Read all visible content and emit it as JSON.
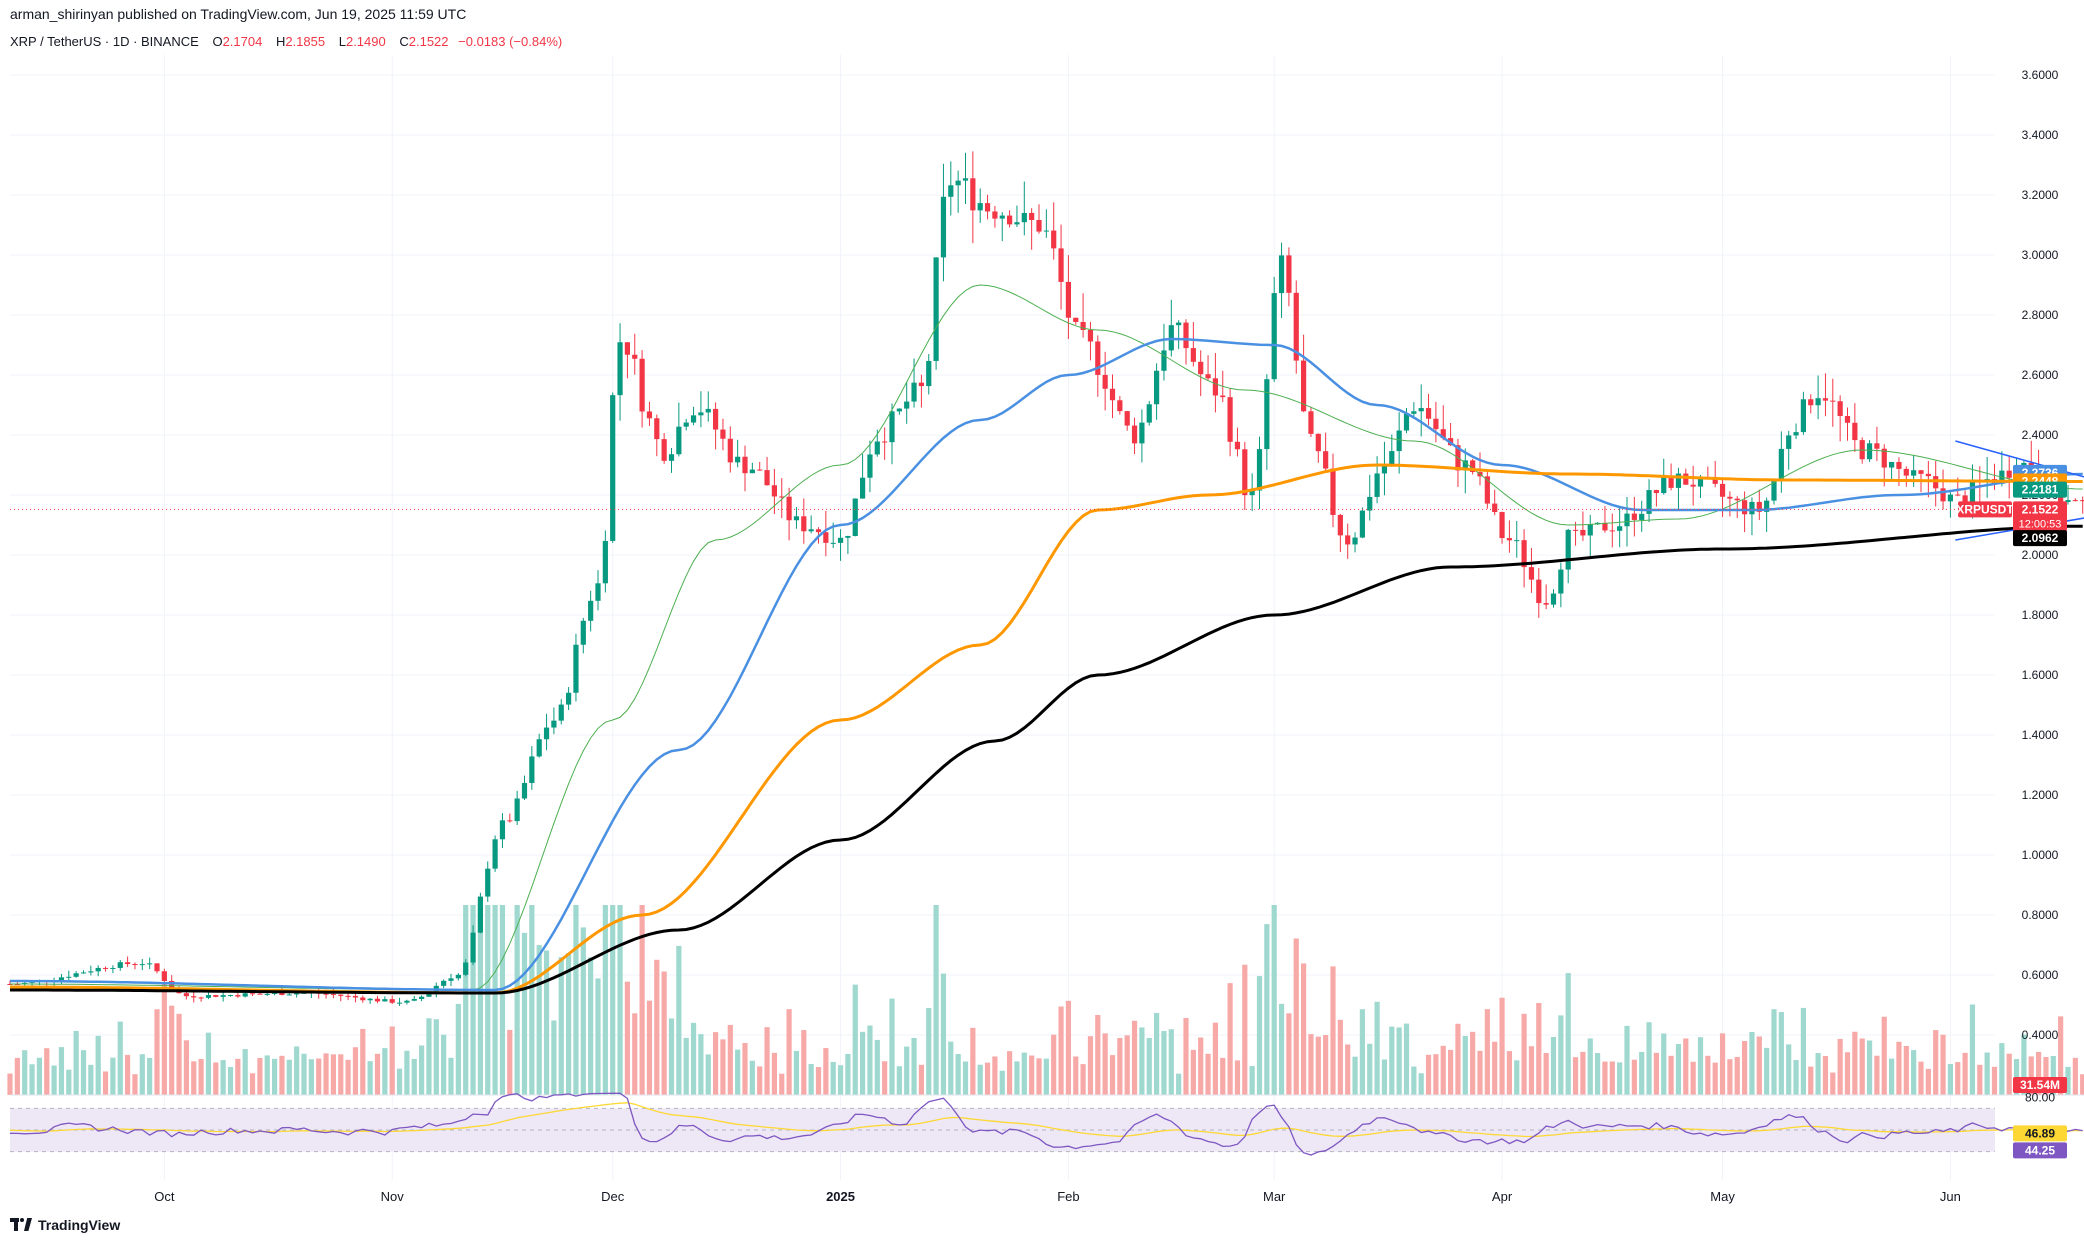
{
  "header": {
    "publisher_line": "arman_shirinyan published on TradingView.com, Jun 19, 2025 11:59 UTC",
    "symbol_line": "XRP / TetherUS · 1D · BINANCE",
    "open_label": "O",
    "open": "2.1704",
    "high_label": "H",
    "high": "2.1855",
    "low_label": "L",
    "low": "2.1490",
    "close_label": "C",
    "close": "2.1522",
    "change": "−0.0183 (−0.84%)"
  },
  "footer": {
    "brand": "TradingView"
  },
  "colors": {
    "up": "#089981",
    "down": "#f23645",
    "up_vol": "#9fd8cf",
    "down_vol": "#f7a9a7",
    "ma20": "#4caf50",
    "ma50": "#4a90e2",
    "ma100": "#ff9800",
    "ma200": "#000000",
    "rsi": "#7e57c2",
    "rsi_ma": "#fdd835",
    "rsi_bg": "#ede7f6",
    "triangle": "#2962ff"
  },
  "chart_data": {
    "type": "candlestick",
    "symbol": "XRPUSDT",
    "timeframe": "1D",
    "ylim": [
      0.2,
      3.7
    ],
    "y_ticks": [
      "3.6000",
      "3.4000",
      "3.2000",
      "3.0000",
      "2.8000",
      "2.6000",
      "2.4000",
      "2.2000",
      "2.0000",
      "1.8000",
      "1.6000",
      "1.4000",
      "1.2000",
      "1.0000",
      "0.8000",
      "0.6000",
      "0.4000"
    ],
    "x_ticks": [
      "Oct",
      "Nov",
      "Dec",
      "2025",
      "Feb",
      "Mar",
      "Apr",
      "May",
      "Jun"
    ],
    "start_date": "2024-09-10",
    "price_path_anchors": [
      [
        "2024-09-10",
        0.57
      ],
      [
        "2024-09-28",
        0.64
      ],
      [
        "2024-10-04",
        0.53
      ],
      [
        "2024-10-20",
        0.54
      ],
      [
        "2024-11-03",
        0.51
      ],
      [
        "2024-11-10",
        0.6
      ],
      [
        "2024-11-16",
        1.1
      ],
      [
        "2024-11-23",
        1.45
      ],
      [
        "2024-11-29",
        1.9
      ],
      [
        "2024-12-02",
        2.72
      ],
      [
        "2024-12-08",
        2.35
      ],
      [
        "2024-12-12",
        2.5
      ],
      [
        "2024-12-19",
        2.3
      ],
      [
        "2024-12-27",
        2.1
      ],
      [
        "2025-01-01",
        2.05
      ],
      [
        "2025-01-06",
        2.4
      ],
      [
        "2025-01-12",
        2.55
      ],
      [
        "2025-01-16",
        3.25
      ],
      [
        "2025-01-22",
        3.15
      ],
      [
        "2025-01-28",
        3.1
      ],
      [
        "2025-02-03",
        2.7
      ],
      [
        "2025-02-10",
        2.4
      ],
      [
        "2025-02-15",
        2.75
      ],
      [
        "2025-02-21",
        2.55
      ],
      [
        "2025-02-26",
        2.2
      ],
      [
        "2025-03-02",
        2.95
      ],
      [
        "2025-03-06",
        2.35
      ],
      [
        "2025-03-11",
        2.05
      ],
      [
        "2025-03-16",
        2.3
      ],
      [
        "2025-03-20",
        2.5
      ],
      [
        "2025-03-27",
        2.3
      ],
      [
        "2025-04-02",
        2.05
      ],
      [
        "2025-04-07",
        1.85
      ],
      [
        "2025-04-10",
        2.05
      ],
      [
        "2025-04-16",
        2.1
      ],
      [
        "2025-04-25",
        2.25
      ],
      [
        "2025-05-06",
        2.15
      ],
      [
        "2025-05-11",
        2.45
      ],
      [
        "2025-05-14",
        2.55
      ],
      [
        "2025-05-20",
        2.35
      ],
      [
        "2025-05-28",
        2.25
      ],
      [
        "2025-06-02",
        2.18
      ],
      [
        "2025-06-06",
        2.25
      ],
      [
        "2025-06-11",
        2.3
      ],
      [
        "2025-06-18",
        2.17
      ],
      [
        "2025-06-19",
        2.15
      ]
    ],
    "series": [
      {
        "name": "MA20",
        "anchors": [
          [
            "2024-09-10",
            0.57
          ],
          [
            "2024-11-12",
            0.55
          ],
          [
            "2024-12-01",
            1.45
          ],
          [
            "2024-12-15",
            2.05
          ],
          [
            "2025-01-01",
            2.3
          ],
          [
            "2025-01-20",
            2.9
          ],
          [
            "2025-02-05",
            2.75
          ],
          [
            "2025-02-25",
            2.55
          ],
          [
            "2025-03-20",
            2.38
          ],
          [
            "2025-04-10",
            2.1
          ],
          [
            "2025-04-25",
            2.12
          ],
          [
            "2025-05-20",
            2.35
          ],
          [
            "2025-06-19",
            2.22
          ]
        ]
      },
      {
        "name": "MA50",
        "anchors": [
          [
            "2024-09-10",
            0.58
          ],
          [
            "2024-11-15",
            0.55
          ],
          [
            "2024-12-10",
            1.35
          ],
          [
            "2025-01-01",
            2.1
          ],
          [
            "2025-01-20",
            2.45
          ],
          [
            "2025-02-01",
            2.6
          ],
          [
            "2025-02-15",
            2.72
          ],
          [
            "2025-03-01",
            2.7
          ],
          [
            "2025-03-15",
            2.5
          ],
          [
            "2025-04-01",
            2.3
          ],
          [
            "2025-04-20",
            2.15
          ],
          [
            "2025-05-05",
            2.15
          ],
          [
            "2025-05-25",
            2.2
          ],
          [
            "2025-06-19",
            2.27
          ]
        ]
      },
      {
        "name": "MA100",
        "anchors": [
          [
            "2024-09-10",
            0.56
          ],
          [
            "2024-11-15",
            0.54
          ],
          [
            "2024-12-05",
            0.8
          ],
          [
            "2025-01-01",
            1.45
          ],
          [
            "2025-01-20",
            1.7
          ],
          [
            "2025-02-05",
            2.15
          ],
          [
            "2025-02-20",
            2.2
          ],
          [
            "2025-03-15",
            2.3
          ],
          [
            "2025-04-10",
            2.27
          ],
          [
            "2025-05-10",
            2.25
          ],
          [
            "2025-06-19",
            2.245
          ]
        ]
      },
      {
        "name": "MA200",
        "anchors": [
          [
            "2024-09-10",
            0.55
          ],
          [
            "2024-11-15",
            0.54
          ],
          [
            "2024-12-10",
            0.75
          ],
          [
            "2025-01-01",
            1.05
          ],
          [
            "2025-01-22",
            1.38
          ],
          [
            "2025-02-05",
            1.6
          ],
          [
            "2025-03-01",
            1.8
          ],
          [
            "2025-03-25",
            1.96
          ],
          [
            "2025-05-01",
            2.02
          ],
          [
            "2025-06-19",
            2.096
          ]
        ]
      }
    ],
    "price_labels": [
      {
        "label": "2.2736",
        "color": "#4a90e2"
      },
      {
        "label": "2.2448",
        "color": "#ff9800"
      },
      {
        "label": "2.2181",
        "color": "#089981"
      },
      {
        "label": "XRPUSDT",
        "color": "#f23645"
      },
      {
        "label": "2.1522",
        "color": "#f23645"
      },
      {
        "label": "12:00:53",
        "color": "#f23645"
      },
      {
        "label": "2.0962",
        "color": "#000000"
      }
    ],
    "volume_label": "31.54M",
    "rsi": {
      "ticks": [
        "80.00"
      ],
      "values": [
        {
          "label": "46.89",
          "color": "#fdd835"
        },
        {
          "label": "44.25",
          "color": "#7e57c2"
        }
      ]
    }
  }
}
